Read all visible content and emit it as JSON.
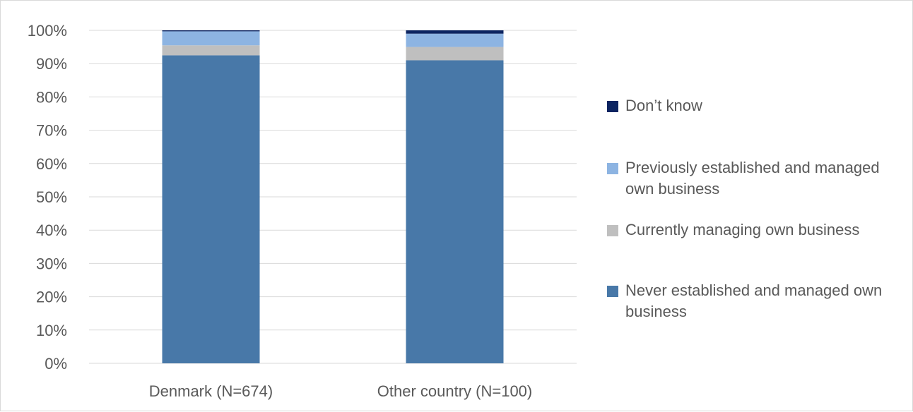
{
  "chart_data": {
    "type": "bar",
    "stacked": true,
    "title": "",
    "xlabel": "",
    "ylabel": "",
    "ylim": [
      0,
      100
    ],
    "y_ticks": [
      "0%",
      "10%",
      "20%",
      "30%",
      "40%",
      "50%",
      "60%",
      "70%",
      "80%",
      "90%",
      "100%"
    ],
    "grid": true,
    "legend_position": "right",
    "categories": [
      "Denmark (N=674)",
      "Other country (N=100)"
    ],
    "series": [
      {
        "name": "Never established and managed own business",
        "color": "#4878a8",
        "values": [
          92.5,
          91.0
        ]
      },
      {
        "name": "Currently managing own business",
        "color": "#bfbfbf",
        "values": [
          3.0,
          4.0
        ]
      },
      {
        "name": "Previously established and managed own business",
        "color": "#8db4e2",
        "values": [
          4.2,
          4.0
        ]
      },
      {
        "name": "Don’t know",
        "color": "#0c2461",
        "values": [
          0.3,
          1.0
        ]
      }
    ],
    "legend_order": [
      "Don’t know",
      "Previously established and managed own business",
      "Currently managing own business",
      "Never established and managed own business"
    ]
  }
}
